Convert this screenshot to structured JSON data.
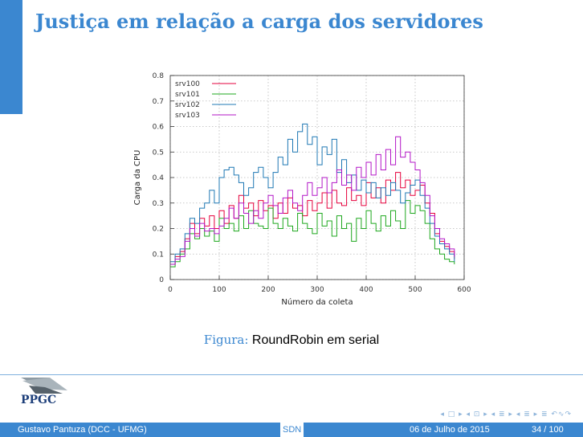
{
  "slide": {
    "title": "Justiça em relação a carga dos servidores",
    "caption_label": "Figura:",
    "caption_text": "RoundRobin em serial"
  },
  "logo": {
    "text": "PPGC"
  },
  "nav": {
    "symbols": "◂ □ ▸ ◂ ⊡ ▸ ◂ ≣ ▸ ◂ ≣ ▸   ≣   ↶∿↷"
  },
  "footer": {
    "author": "Gustavo Pantuza (DCC - UFMG)",
    "center": "SDN",
    "date": "06 de Julho de 2015",
    "page": "34 / 100"
  },
  "colors": {
    "accent": "#3b87d0",
    "srv100": "#e6003c",
    "srv101": "#1fa81f",
    "srv102": "#1f78b4",
    "srv103": "#b317c7"
  },
  "chart_data": {
    "type": "line",
    "xlabel": "Número da coleta",
    "ylabel": "Carga da CPU",
    "xlim": [
      0,
      600
    ],
    "ylim": [
      0,
      0.8
    ],
    "xticks": [
      0,
      100,
      200,
      300,
      400,
      500,
      600
    ],
    "yticks": [
      0,
      0.1,
      0.2,
      0.3,
      0.4,
      0.5,
      0.6,
      0.7,
      0.8
    ],
    "grid": true,
    "legend_position": "top-left",
    "x": [
      0,
      10,
      20,
      30,
      40,
      50,
      60,
      70,
      80,
      90,
      100,
      110,
      120,
      130,
      140,
      150,
      160,
      170,
      180,
      190,
      200,
      210,
      220,
      230,
      240,
      250,
      260,
      270,
      280,
      290,
      300,
      310,
      320,
      330,
      340,
      350,
      360,
      370,
      380,
      390,
      400,
      410,
      420,
      430,
      440,
      450,
      460,
      470,
      480,
      490,
      500,
      510,
      520,
      530,
      540,
      550,
      560,
      570,
      580
    ],
    "series": [
      {
        "name": "srv100",
        "values": [
          0.06,
          0.09,
          0.11,
          0.16,
          0.22,
          0.18,
          0.24,
          0.21,
          0.25,
          0.2,
          0.27,
          0.22,
          0.29,
          0.24,
          0.33,
          0.28,
          0.3,
          0.25,
          0.31,
          0.27,
          0.29,
          0.24,
          0.3,
          0.26,
          0.32,
          0.28,
          0.29,
          0.25,
          0.31,
          0.27,
          0.3,
          0.34,
          0.28,
          0.35,
          0.3,
          0.29,
          0.36,
          0.31,
          0.33,
          0.29,
          0.38,
          0.32,
          0.36,
          0.3,
          0.39,
          0.35,
          0.42,
          0.36,
          0.39,
          0.33,
          0.35,
          0.37,
          0.3,
          0.26,
          0.18,
          0.15,
          0.13,
          0.11,
          0.08
        ]
      },
      {
        "name": "srv101",
        "values": [
          0.05,
          0.07,
          0.1,
          0.12,
          0.18,
          0.16,
          0.2,
          0.17,
          0.19,
          0.15,
          0.24,
          0.2,
          0.22,
          0.19,
          0.25,
          0.2,
          0.27,
          0.22,
          0.21,
          0.2,
          0.28,
          0.22,
          0.2,
          0.24,
          0.21,
          0.19,
          0.26,
          0.22,
          0.2,
          0.18,
          0.26,
          0.21,
          0.23,
          0.17,
          0.25,
          0.2,
          0.22,
          0.15,
          0.24,
          0.2,
          0.27,
          0.22,
          0.19,
          0.25,
          0.21,
          0.27,
          0.23,
          0.2,
          0.31,
          0.26,
          0.29,
          0.27,
          0.22,
          0.16,
          0.12,
          0.1,
          0.08,
          0.07,
          0.06
        ]
      },
      {
        "name": "srv102",
        "values": [
          0.07,
          0.1,
          0.12,
          0.18,
          0.24,
          0.22,
          0.28,
          0.3,
          0.35,
          0.3,
          0.4,
          0.43,
          0.44,
          0.41,
          0.38,
          0.33,
          0.36,
          0.42,
          0.44,
          0.4,
          0.36,
          0.42,
          0.48,
          0.45,
          0.55,
          0.5,
          0.58,
          0.61,
          0.53,
          0.56,
          0.45,
          0.52,
          0.49,
          0.55,
          0.42,
          0.47,
          0.38,
          0.41,
          0.35,
          0.39,
          0.34,
          0.38,
          0.32,
          0.36,
          0.33,
          0.38,
          0.35,
          0.3,
          0.34,
          0.37,
          0.39,
          0.33,
          0.28,
          0.22,
          0.17,
          0.14,
          0.12,
          0.1,
          0.07
        ]
      },
      {
        "name": "srv103",
        "values": [
          0.06,
          0.08,
          0.09,
          0.15,
          0.2,
          0.17,
          0.22,
          0.19,
          0.2,
          0.18,
          0.21,
          0.24,
          0.28,
          0.24,
          0.3,
          0.26,
          0.22,
          0.27,
          0.24,
          0.3,
          0.33,
          0.29,
          0.26,
          0.32,
          0.35,
          0.3,
          0.27,
          0.33,
          0.38,
          0.33,
          0.36,
          0.4,
          0.34,
          0.38,
          0.43,
          0.37,
          0.41,
          0.35,
          0.44,
          0.4,
          0.46,
          0.41,
          0.49,
          0.43,
          0.51,
          0.45,
          0.56,
          0.48,
          0.5,
          0.46,
          0.43,
          0.38,
          0.33,
          0.25,
          0.2,
          0.16,
          0.14,
          0.12,
          0.09
        ]
      }
    ]
  }
}
